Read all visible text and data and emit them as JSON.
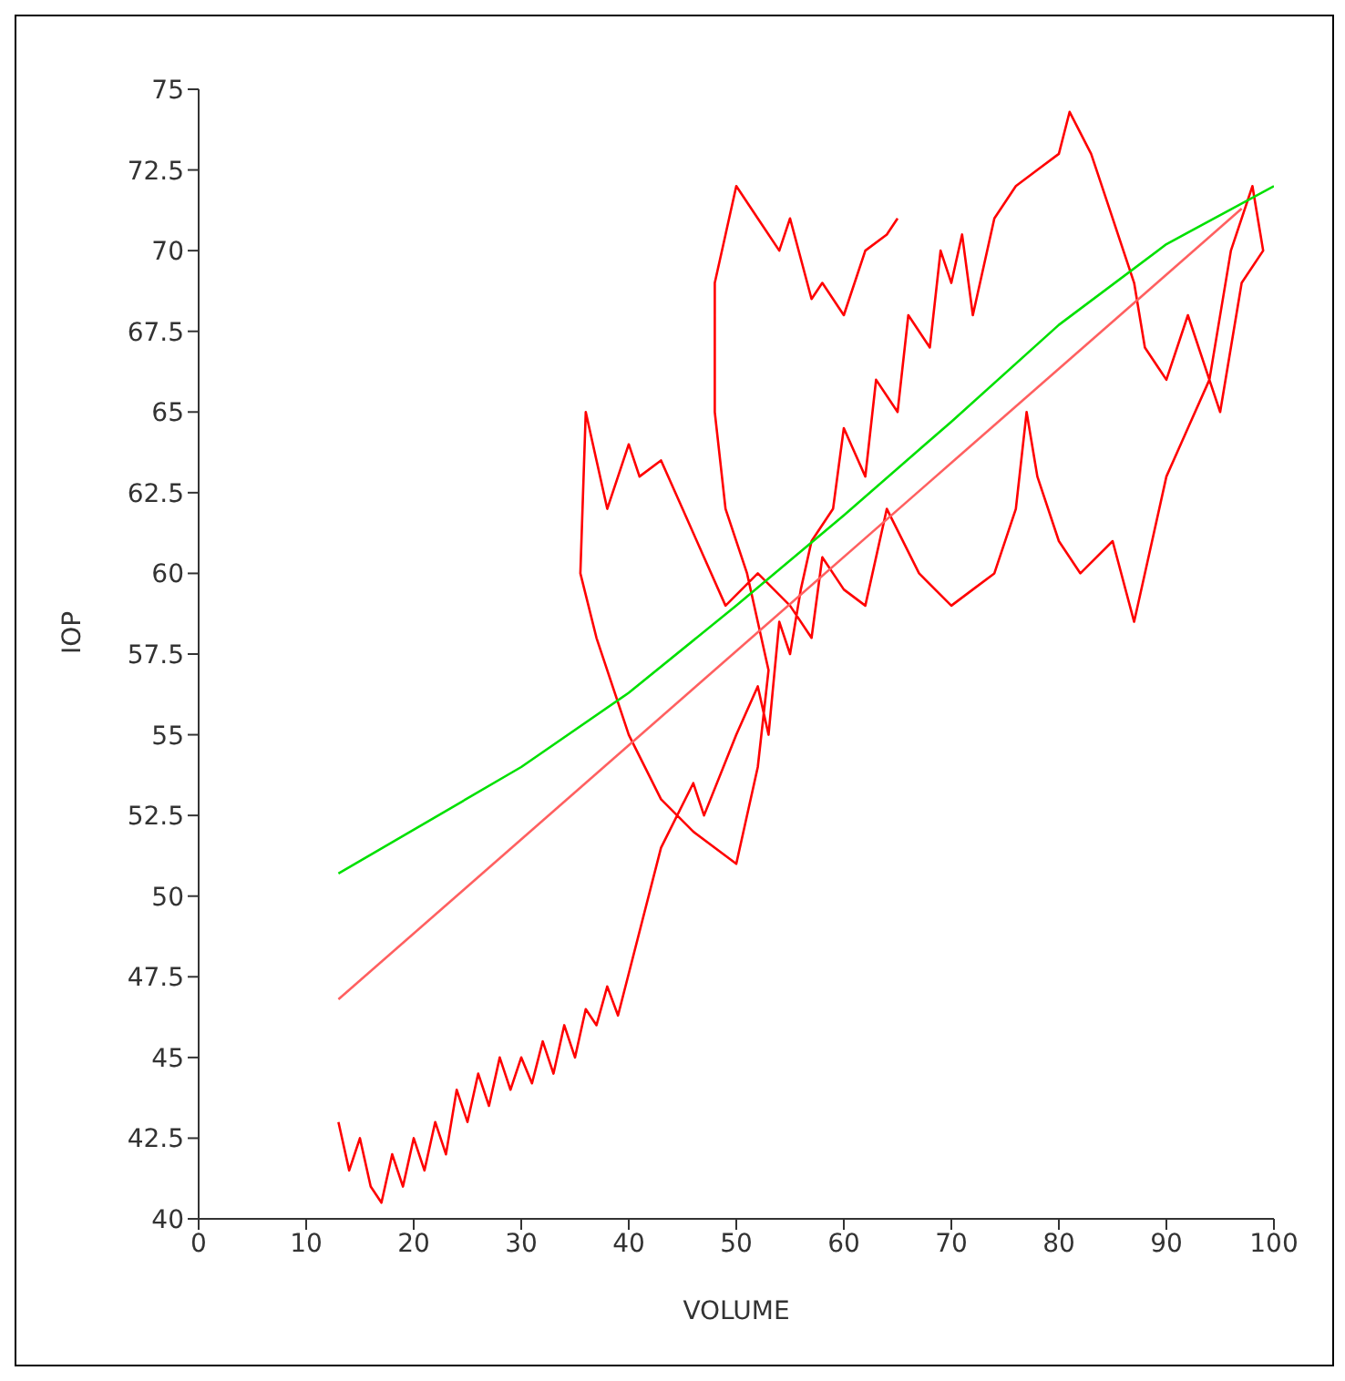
{
  "chart_data": {
    "type": "line",
    "xlabel": "VOLUME",
    "ylabel": "IOP",
    "xlim": [
      0,
      100
    ],
    "ylim": [
      40,
      75
    ],
    "xticks": [
      0,
      10,
      20,
      30,
      40,
      50,
      60,
      70,
      80,
      90,
      100
    ],
    "yticks": [
      40,
      42.5,
      45,
      47.5,
      50,
      52.5,
      55,
      57.5,
      60,
      62.5,
      65,
      67.5,
      70,
      72.5,
      75
    ],
    "grid": false,
    "legend": false,
    "marker": "none",
    "series": [
      {
        "color": "#ff0000",
        "x": [
          13,
          14,
          15,
          16,
          17,
          18,
          19,
          20,
          21,
          22,
          23,
          24,
          25,
          26,
          27,
          28,
          29,
          30,
          31,
          32,
          33,
          34,
          35,
          36,
          37,
          38,
          39,
          43,
          46,
          47,
          50,
          52,
          53,
          54,
          55,
          56,
          57,
          59,
          60,
          62,
          63,
          65,
          66,
          68,
          69,
          70,
          71,
          72,
          74,
          76,
          78,
          80,
          81,
          83,
          85,
          87,
          88,
          90,
          92,
          95,
          97,
          99,
          98,
          96,
          94,
          92,
          90,
          88,
          87,
          85,
          82,
          80,
          78,
          77,
          76,
          74,
          72,
          70,
          67,
          64,
          62,
          60,
          58,
          57,
          55,
          52,
          49,
          47,
          45,
          43,
          41,
          40,
          38,
          37,
          36,
          35.5,
          37,
          40,
          43,
          46,
          50,
          52,
          53,
          51,
          49,
          48,
          48,
          49,
          50,
          52,
          54,
          55,
          57,
          58,
          60,
          62,
          64,
          65
        ],
        "values": [
          43,
          41.5,
          42.5,
          41,
          40.5,
          42,
          41,
          42.5,
          41.5,
          43,
          42,
          44,
          43,
          44.5,
          43.5,
          45,
          44,
          45,
          44.2,
          45.5,
          44.5,
          46,
          45,
          46.5,
          46,
          47.2,
          46.3,
          51.5,
          53.5,
          52.5,
          55,
          56.5,
          55,
          58.5,
          57.5,
          59.5,
          61,
          62,
          64.5,
          63,
          66,
          65,
          68,
          67,
          70,
          69,
          70.5,
          68,
          71,
          72,
          72.5,
          73,
          74.3,
          73,
          71,
          69,
          67,
          66,
          68,
          65,
          69,
          70,
          72,
          70,
          66,
          64.5,
          63,
          60,
          58.5,
          61,
          60,
          61,
          63,
          65,
          62,
          60,
          59.5,
          59,
          60,
          62,
          59,
          59.5,
          60.5,
          58,
          59,
          60,
          59,
          60.5,
          62,
          63.5,
          63,
          64,
          62,
          63.5,
          65,
          60,
          58,
          55,
          53,
          52,
          51,
          54,
          57,
          60,
          62,
          65,
          69,
          70.5,
          72,
          71,
          70,
          71,
          68.5,
          69,
          68,
          70,
          70.5,
          71
        ]
      },
      {
        "color": "#ff6060",
        "x": [
          13,
          97
        ],
        "values": [
          46.8,
          71.3
        ]
      },
      {
        "color": "#00e000",
        "x": [
          13,
          30,
          40,
          50,
          60,
          70,
          80,
          90,
          100
        ],
        "values": [
          50.7,
          54,
          56.3,
          59,
          61.8,
          64.7,
          67.7,
          70.2,
          72
        ]
      }
    ]
  }
}
